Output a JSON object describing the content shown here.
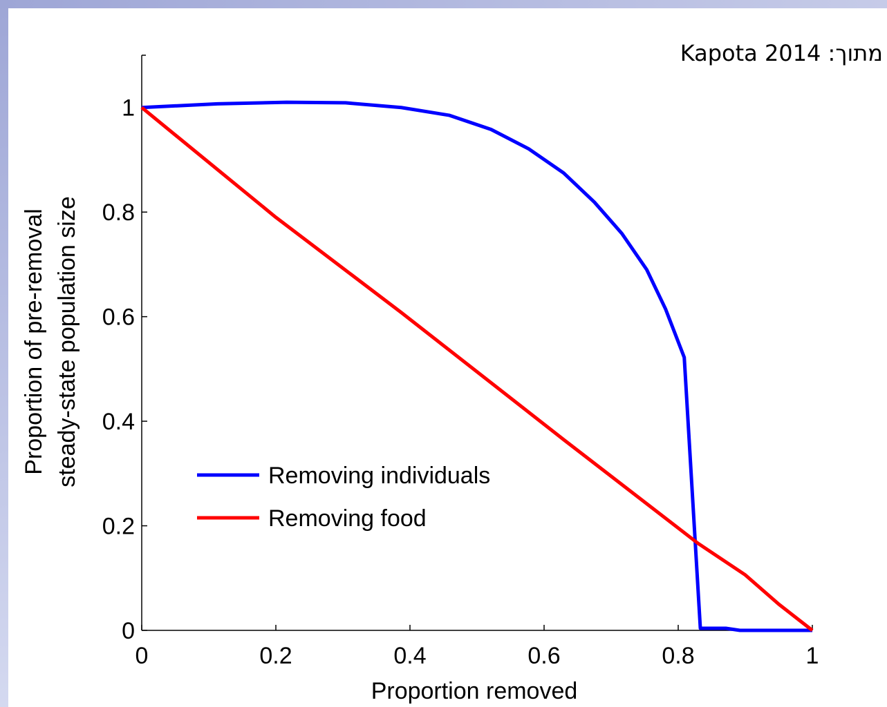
{
  "chart_data": {
    "type": "line",
    "xlabel": "Proportion removed",
    "ylabel": [
      "Proportion of pre-removal",
      "steady-state population size"
    ],
    "annotation": "מתוך: Kapota 2014",
    "xlim": [
      0,
      1
    ],
    "ylim": [
      0,
      1.1
    ],
    "xticks": [
      0,
      0.2,
      0.4,
      0.6,
      0.8,
      1
    ],
    "yticks": [
      0,
      0.2,
      0.4,
      0.6,
      0.8,
      1
    ],
    "legend": "lower left",
    "series": [
      {
        "name": "Removing individuals",
        "color": "#0000ff",
        "x": [
          0,
          0.113,
          0.216,
          0.304,
          0.387,
          0.459,
          0.521,
          0.577,
          0.629,
          0.675,
          0.716,
          0.753,
          0.781,
          0.809,
          0.833,
          0.871,
          0.892,
          1
        ],
        "values": [
          1.0,
          1.007,
          1.01,
          1.009,
          1.0,
          0.985,
          0.958,
          0.921,
          0.875,
          0.819,
          0.759,
          0.69,
          0.615,
          0.522,
          0.004,
          0.004,
          0,
          0
        ]
      },
      {
        "name": "Removing food",
        "color": "#ff0000",
        "x": [
          0,
          0.2,
          0.387,
          0.629,
          0.83,
          0.9,
          0.95,
          1
        ],
        "values": [
          1.0,
          0.79,
          0.608,
          0.365,
          0.166,
          0.106,
          0.05,
          0
        ]
      }
    ]
  }
}
